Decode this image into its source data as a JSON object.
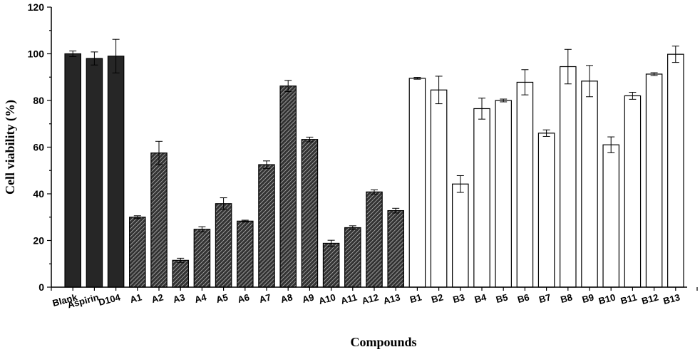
{
  "chart_data": {
    "type": "bar",
    "title": "",
    "xlabel": "Compounds",
    "ylabel": "Cell viability (%)",
    "ylim": [
      0,
      120
    ],
    "yticks": [
      0,
      20,
      40,
      60,
      80,
      100,
      120
    ],
    "grid": false,
    "legend": "none",
    "categories": [
      "Blank",
      "Aspirin",
      "D104",
      "A1",
      "A2",
      "A3",
      "A4",
      "A5",
      "A6",
      "A7",
      "A8",
      "A9",
      "A10",
      "A11",
      "A12",
      "A13",
      "B1",
      "B2",
      "B3",
      "B4",
      "B5",
      "B6",
      "B7",
      "B8",
      "B9",
      "B10",
      "B11",
      "B12",
      "B13"
    ],
    "values": [
      100,
      98,
      99,
      30,
      57.5,
      11.5,
      24.8,
      35.8,
      28.3,
      52.5,
      86.2,
      63.3,
      18.8,
      25.5,
      40.8,
      32.8,
      89.5,
      84.5,
      44.2,
      76.5,
      80,
      87.8,
      66,
      94.5,
      88.3,
      61,
      82,
      91.3,
      99.8
    ],
    "errors": [
      1.2,
      2.8,
      7.2,
      0.6,
      5,
      0.9,
      1.1,
      2.5,
      0.4,
      1.6,
      2.4,
      1,
      1.3,
      0.8,
      0.9,
      1,
      0.4,
      5.9,
      3.6,
      4.5,
      0.6,
      5.4,
      1.4,
      7.4,
      6.7,
      3.4,
      1.5,
      0.6,
      3.5
    ],
    "groups": [
      "control",
      "control",
      "control",
      "A",
      "A",
      "A",
      "A",
      "A",
      "A",
      "A",
      "A",
      "A",
      "A",
      "A",
      "A",
      "A",
      "B",
      "B",
      "B",
      "B",
      "B",
      "B",
      "B",
      "B",
      "B",
      "B",
      "B",
      "B",
      "B"
    ],
    "colors": {
      "control": "#262626",
      "A_fill": "#333333",
      "A_hatch": "#cfcfcf",
      "B": "#ffffff",
      "stroke": "#000000"
    }
  }
}
